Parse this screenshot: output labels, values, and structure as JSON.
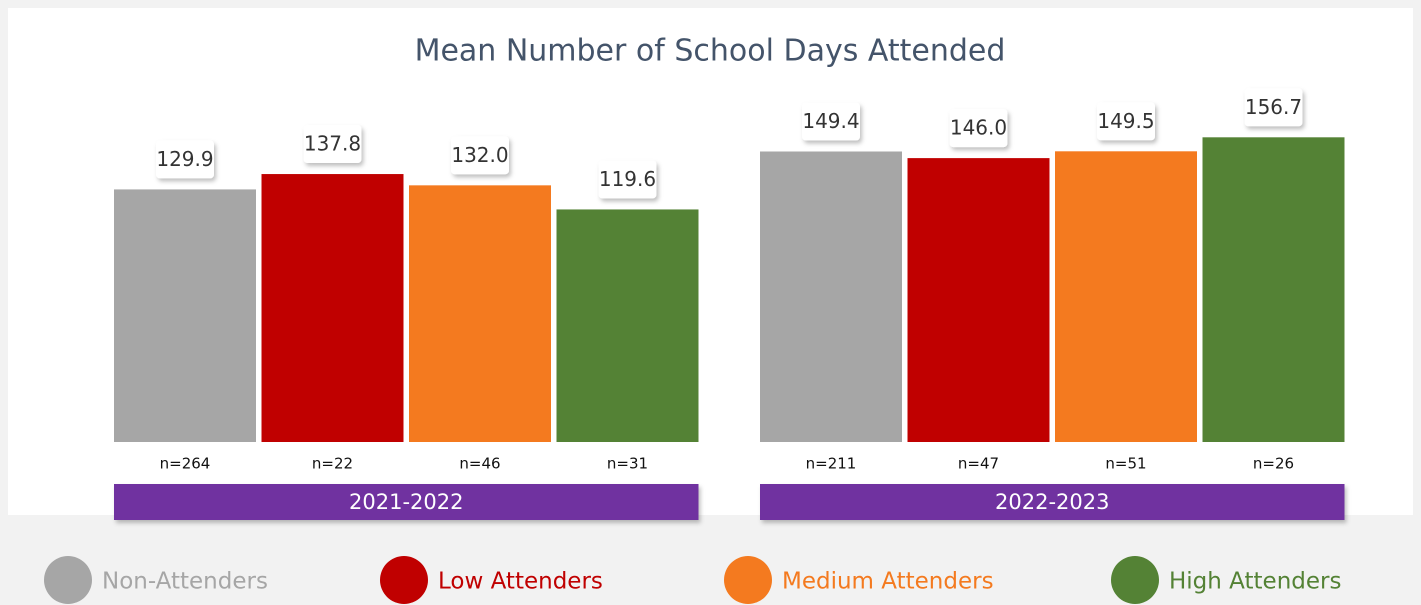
{
  "chart_data": {
    "type": "bar",
    "title": "Mean Number of School Days Attended",
    "categories": [
      "2021-2022",
      "2022-2023"
    ],
    "ylim": [
      0,
      180
    ],
    "legend": "bottom",
    "series": [
      {
        "name": "Non-Attenders",
        "color": "#a6a6a6",
        "values": [
          129.9,
          149.4
        ],
        "value_labels": [
          "129.9",
          "149.4"
        ],
        "sample_labels": [
          "n=264",
          "n=211"
        ]
      },
      {
        "name": "Low Attenders",
        "color": "#c00000",
        "values": [
          137.8,
          146.0
        ],
        "value_labels": [
          "137.8",
          "146.0"
        ],
        "sample_labels": [
          "n=22",
          "n=47"
        ]
      },
      {
        "name": "Medium Attenders",
        "color": "#f47a1f",
        "values": [
          132.0,
          149.5
        ],
        "value_labels": [
          "132.0",
          "149.5"
        ],
        "sample_labels": [
          "n=46",
          "n=51"
        ]
      },
      {
        "name": "High Attenders",
        "color": "#548235",
        "values": [
          119.6,
          156.7
        ],
        "value_labels": [
          "119.6",
          "156.7"
        ],
        "sample_labels": [
          "n=31",
          "n=26"
        ]
      }
    ]
  }
}
